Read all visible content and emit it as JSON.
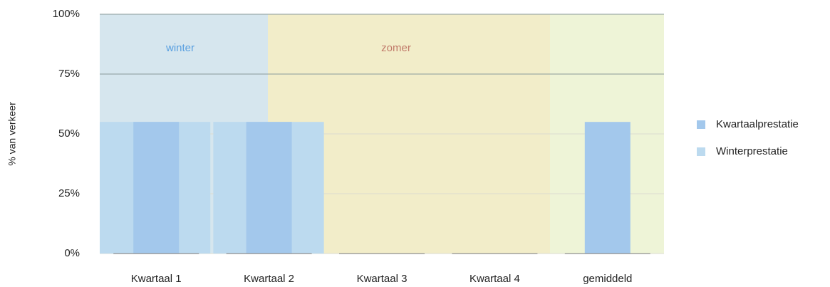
{
  "chart_data": {
    "type": "bar",
    "categories": [
      "Kwartaal 1",
      "Kwartaal 2",
      "Kwartaal 3",
      "Kwartaal 4",
      "gemiddeld"
    ],
    "series": [
      {
        "name": "Kwartaalprestatie",
        "color": "#a3c8ec",
        "values": [
          55,
          55,
          0,
          0,
          55
        ]
      },
      {
        "name": "Winterprestatie",
        "color": "#bcdaef",
        "values": [
          55,
          55,
          null,
          null,
          null
        ]
      }
    ],
    "annotations": [
      "winter",
      "zomer"
    ],
    "ylabel": "% van verkeer",
    "ylim": [
      0,
      100
    ],
    "yticks": [
      {
        "value": 0,
        "label": "0%"
      },
      {
        "value": 25,
        "label": "25%"
      },
      {
        "value": 50,
        "label": "50%"
      },
      {
        "value": 75,
        "label": "75%"
      },
      {
        "value": 100,
        "label": "100%"
      }
    ],
    "grid": true,
    "legend": "right"
  }
}
